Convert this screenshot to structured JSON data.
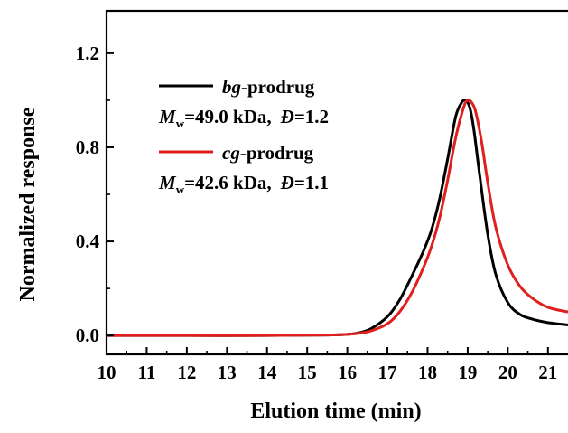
{
  "chart_data": {
    "type": "line",
    "xlabel": "Elution time (min)",
    "ylabel": "Normalized response",
    "xlim": [
      10,
      21.5
    ],
    "ylim": [
      -0.08,
      1.38
    ],
    "x_ticks": [
      10,
      11,
      12,
      13,
      14,
      15,
      16,
      17,
      18,
      19,
      20,
      21
    ],
    "y_ticks": [
      0.0,
      0.4,
      0.8,
      1.2
    ],
    "y_tick_labels": [
      "0.0",
      "0.4",
      "0.8",
      "1.2"
    ],
    "grid": false,
    "legend_position": "top-left",
    "series": [
      {
        "name": "bg-prodrug",
        "name_italic": "bg",
        "name_suffix": "-prodrug",
        "mw_label": "M",
        "mw_sub": "w",
        "mw_value": "=49.0 kDa,",
        "dispersity_symbol": "Đ",
        "dispersity_value": "=1.2",
        "color": "#000000",
        "x": [
          10.0,
          12.0,
          14.0,
          15.5,
          16.0,
          16.3,
          16.6,
          17.0,
          17.3,
          17.6,
          17.9,
          18.1,
          18.3,
          18.5,
          18.7,
          18.85,
          18.95,
          19.05,
          19.15,
          19.3,
          19.5,
          19.7,
          20.0,
          20.3,
          20.6,
          21.0,
          21.5
        ],
        "y": [
          0.0,
          0.0,
          0.0,
          0.002,
          0.005,
          0.012,
          0.03,
          0.08,
          0.15,
          0.25,
          0.36,
          0.45,
          0.58,
          0.75,
          0.93,
          0.99,
          1.0,
          0.97,
          0.88,
          0.68,
          0.43,
          0.26,
          0.14,
          0.09,
          0.07,
          0.055,
          0.045
        ]
      },
      {
        "name": "cg-prodrug",
        "name_italic": "cg",
        "name_suffix": "-prodrug",
        "mw_label": "M",
        "mw_sub": "w",
        "mw_value": "=42.6 kDa,",
        "dispersity_symbol": "Đ",
        "dispersity_value": "=1.1",
        "color": "#e01f1f",
        "x": [
          10.0,
          12.0,
          14.0,
          15.5,
          16.0,
          16.3,
          16.6,
          17.0,
          17.3,
          17.6,
          17.9,
          18.1,
          18.3,
          18.5,
          18.7,
          18.9,
          19.0,
          19.1,
          19.2,
          19.35,
          19.5,
          19.7,
          20.0,
          20.3,
          20.6,
          21.0,
          21.5
        ],
        "y": [
          0.0,
          0.0,
          0.0,
          0.002,
          0.005,
          0.01,
          0.02,
          0.05,
          0.1,
          0.18,
          0.29,
          0.38,
          0.5,
          0.66,
          0.84,
          0.97,
          1.0,
          0.99,
          0.95,
          0.82,
          0.65,
          0.46,
          0.3,
          0.21,
          0.16,
          0.12,
          0.1
        ]
      }
    ]
  }
}
